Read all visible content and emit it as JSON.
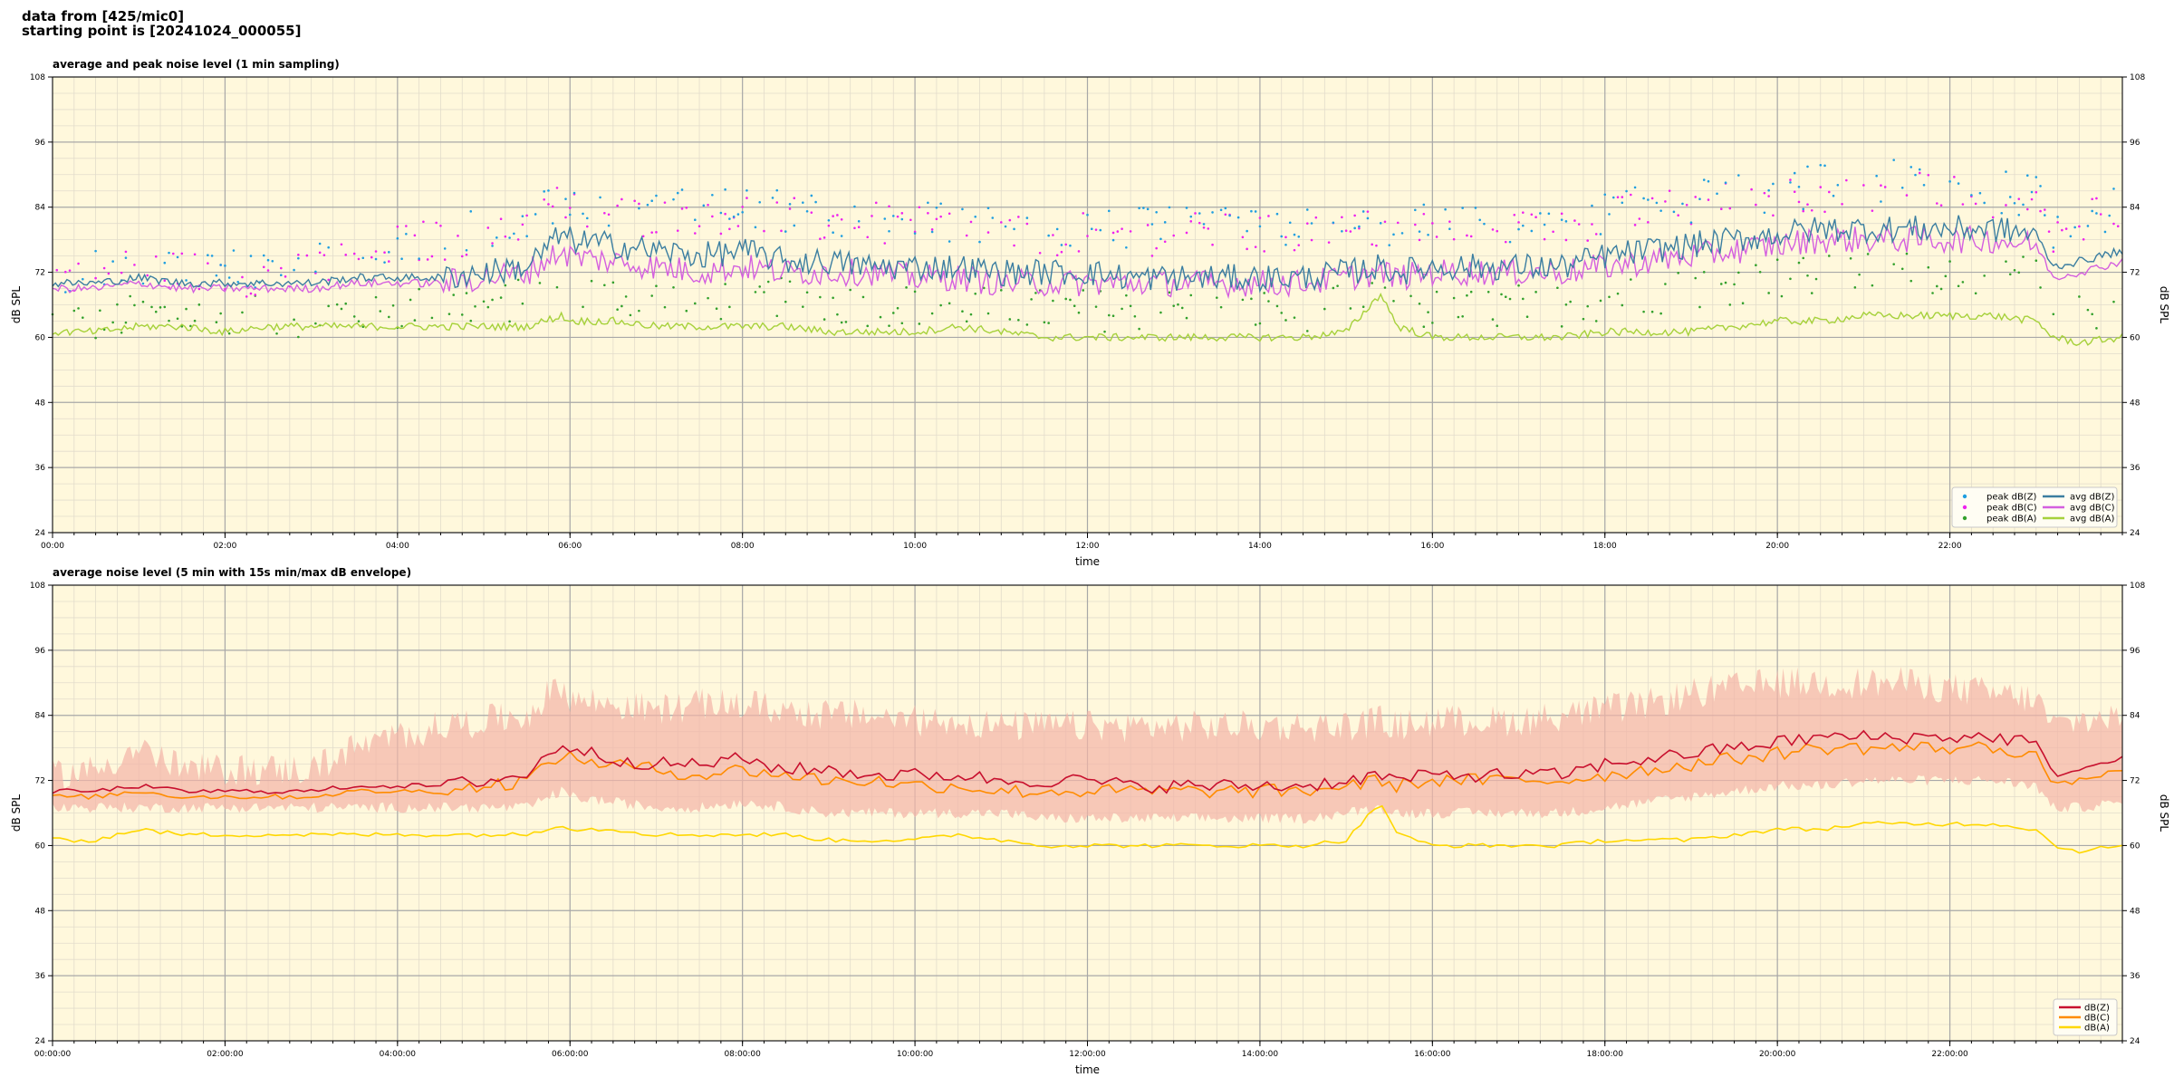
{
  "header": {
    "line1": "data from [425/mic0]",
    "line2": "starting point is [20241024_000055]"
  },
  "chart_data": [
    {
      "type": "line",
      "title": "average and peak noise level (1 min sampling)",
      "xlabel": "time",
      "ylabel": "dB SPL",
      "ylim": [
        24,
        108
      ],
      "xlim_hours": [
        0,
        24
      ],
      "x_tick_labels": [
        "00:00",
        "02:00",
        "04:00",
        "06:00",
        "08:00",
        "10:00",
        "12:00",
        "14:00",
        "16:00",
        "18:00",
        "20:00",
        "22:00"
      ],
      "y_ticks": [
        24,
        36,
        48,
        60,
        72,
        84,
        96,
        108
      ],
      "grid": true,
      "legend_position": "bottom-right",
      "legend_columns": 2,
      "colors": {
        "peakZ": "#1f9ee0",
        "peakC": "#ee22ee",
        "peakA": "#33a02c",
        "avgZ": "#3b7ea1",
        "avgC": "#d45fdf",
        "avgA": "#a6d13b"
      },
      "series": [
        {
          "name": "peak dB(Z)",
          "kind": "scatter",
          "key": "peakZ"
        },
        {
          "name": "peak dB(C)",
          "kind": "scatter",
          "key": "peakC"
        },
        {
          "name": "peak dB(A)",
          "kind": "scatter",
          "key": "peakA"
        },
        {
          "name": "avg dB(Z)",
          "kind": "line",
          "key": "avgZ"
        },
        {
          "name": "avg dB(C)",
          "kind": "line",
          "key": "avgC"
        },
        {
          "name": "avg dB(A)",
          "kind": "line",
          "key": "avgA"
        }
      ],
      "hours": [
        0,
        0.5,
        1,
        1.5,
        2,
        2.5,
        3,
        3.5,
        4,
        4.5,
        5,
        5.5,
        5.9,
        6,
        6.5,
        7,
        7.5,
        8,
        8.5,
        9,
        9.5,
        10,
        10.5,
        11,
        11.5,
        12,
        12.5,
        13,
        13.5,
        14,
        14.5,
        15,
        15.4,
        15.6,
        16,
        16.5,
        17,
        17.5,
        18,
        18.5,
        19,
        19.5,
        20,
        20.5,
        21,
        21.5,
        22,
        22.5,
        23,
        23.2,
        23.5,
        24
      ],
      "values": {
        "avgZ": [
          70,
          70,
          71,
          70,
          70,
          70,
          70,
          71,
          71,
          71,
          72,
          73,
          79,
          78,
          77,
          76,
          75,
          76,
          74,
          74,
          73,
          73,
          73,
          72,
          72,
          72,
          71,
          71,
          71,
          71,
          71,
          72,
          73,
          72,
          73,
          73,
          73,
          73,
          75,
          76,
          77,
          78,
          79,
          80,
          80,
          80,
          80,
          80,
          79,
          73,
          74,
          76
        ],
        "avgC": [
          69,
          69,
          70,
          69,
          69,
          69,
          69,
          70,
          70,
          70,
          71,
          72,
          76,
          75,
          74,
          73,
          72,
          73,
          72,
          72,
          72,
          71,
          71,
          70,
          70,
          70,
          70,
          70,
          70,
          70,
          70,
          71,
          72,
          71,
          72,
          72,
          72,
          72,
          73,
          74,
          75,
          76,
          77,
          78,
          78,
          78,
          78,
          78,
          77,
          71,
          72,
          74
        ],
        "avgA": [
          61,
          61,
          62,
          62,
          61,
          62,
          62,
          62,
          62,
          62,
          62,
          62,
          64,
          63,
          63,
          62,
          62,
          62,
          62,
          61,
          61,
          61,
          62,
          61,
          60,
          60,
          60,
          60,
          60,
          60,
          60,
          61,
          68,
          62,
          60,
          60,
          60,
          60,
          61,
          61,
          61,
          62,
          63,
          63,
          64,
          64,
          64,
          64,
          63,
          60,
          59,
          60
        ],
        "peakZ": [
          72,
          72,
          74,
          73,
          73,
          72,
          73,
          76,
          78,
          79,
          80,
          82,
          86,
          84,
          84,
          83,
          84,
          84,
          83,
          82,
          82,
          81,
          81,
          80,
          80,
          80,
          80,
          80,
          80,
          80,
          80,
          80,
          81,
          80,
          81,
          81,
          81,
          82,
          83,
          84,
          85,
          86,
          87,
          88,
          88,
          89,
          88,
          87,
          86,
          80,
          82,
          84
        ],
        "peakC": [
          71,
          71,
          73,
          72,
          72,
          71,
          72,
          75,
          77,
          78,
          79,
          81,
          85,
          83,
          83,
          82,
          83,
          83,
          82,
          81,
          81,
          80,
          80,
          79,
          79,
          79,
          79,
          79,
          79,
          79,
          79,
          79,
          80,
          79,
          80,
          80,
          80,
          81,
          82,
          83,
          84,
          85,
          86,
          87,
          87,
          88,
          87,
          86,
          85,
          79,
          81,
          83
        ],
        "peakA": [
          63,
          63,
          64,
          64,
          63,
          64,
          64,
          65,
          65,
          66,
          66,
          67,
          69,
          68,
          68,
          67,
          67,
          67,
          67,
          66,
          66,
          66,
          66,
          65,
          65,
          65,
          65,
          65,
          65,
          65,
          65,
          66,
          70,
          66,
          65,
          65,
          66,
          66,
          67,
          68,
          69,
          70,
          71,
          71,
          72,
          72,
          72,
          72,
          71,
          65,
          64,
          66
        ]
      }
    },
    {
      "type": "line",
      "title": "average noise level (5 min with 15s min/max dB envelope)",
      "xlabel": "time",
      "ylabel": "dB SPL",
      "ylim": [
        24,
        108
      ],
      "xlim_hours": [
        0,
        24
      ],
      "x_tick_labels": [
        "00:00:00",
        "02:00:00",
        "04:00:00",
        "06:00:00",
        "08:00:00",
        "10:00:00",
        "12:00:00",
        "14:00:00",
        "16:00:00",
        "18:00:00",
        "20:00:00",
        "22:00:00"
      ],
      "y_ticks": [
        24,
        36,
        48,
        60,
        72,
        84,
        96,
        108
      ],
      "grid": true,
      "legend_position": "bottom-right",
      "colors": {
        "Z": "#c8102e",
        "C": "#ff8c00",
        "A": "#ffd700",
        "envelope": "#f4b3a6"
      },
      "series": [
        {
          "name": "dB(Z)",
          "key": "Z"
        },
        {
          "name": "dB(C)",
          "key": "C"
        },
        {
          "name": "dB(A)",
          "key": "A"
        }
      ],
      "hours": [
        0,
        0.5,
        1,
        1.5,
        2,
        2.5,
        3,
        3.5,
        4,
        4.5,
        5,
        5.5,
        5.9,
        6,
        6.5,
        7,
        7.5,
        8,
        8.5,
        9,
        9.5,
        10,
        10.5,
        11,
        11.5,
        12,
        12.5,
        13,
        13.5,
        14,
        14.5,
        15,
        15.4,
        15.6,
        16,
        16.5,
        17,
        17.5,
        18,
        18.5,
        19,
        19.5,
        20,
        20.5,
        21,
        21.5,
        22,
        22.5,
        23,
        23.2,
        23.5,
        24
      ],
      "values": {
        "Z": [
          70,
          70,
          71,
          70,
          70,
          70,
          70,
          71,
          71,
          71,
          72,
          73,
          79,
          78,
          76,
          75,
          75,
          76,
          74,
          74,
          73,
          73,
          73,
          72,
          72,
          72,
          71,
          71,
          71,
          71,
          71,
          72,
          73,
          72,
          73,
          73,
          73,
          73,
          75,
          76,
          77,
          78,
          79,
          80,
          80,
          80,
          80,
          80,
          79,
          73,
          74,
          76
        ],
        "C": [
          69,
          69,
          70,
          69,
          69,
          69,
          69,
          70,
          70,
          70,
          71,
          72,
          77,
          76,
          75,
          74,
          73,
          74,
          73,
          72,
          72,
          71,
          71,
          70,
          70,
          70,
          70,
          70,
          70,
          70,
          70,
          71,
          72,
          71,
          72,
          72,
          72,
          72,
          73,
          74,
          75,
          76,
          77,
          78,
          78,
          78,
          78,
          78,
          77,
          71,
          72,
          74
        ],
        "A": [
          61,
          61,
          63,
          62,
          62,
          62,
          62,
          62,
          62,
          62,
          62,
          62,
          64,
          63,
          63,
          62,
          62,
          62,
          62,
          61,
          61,
          61,
          62,
          61,
          60,
          60,
          60,
          60,
          60,
          60,
          60,
          61,
          68,
          62,
          60,
          60,
          60,
          60,
          61,
          61,
          61,
          62,
          63,
          63,
          64,
          64,
          64,
          64,
          63,
          60,
          59,
          60
        ],
        "env_min": [
          67,
          67,
          67,
          67,
          67,
          67,
          67,
          67,
          67,
          67,
          67,
          67,
          70,
          69,
          68,
          67,
          67,
          68,
          67,
          66,
          66,
          66,
          66,
          66,
          65,
          65,
          65,
          65,
          65,
          65,
          65,
          66,
          67,
          66,
          66,
          66,
          66,
          66,
          67,
          68,
          69,
          70,
          71,
          71,
          72,
          72,
          72,
          72,
          71,
          67,
          67,
          68
        ],
        "env_max": [
          73,
          74,
          78,
          74,
          74,
          74,
          74,
          78,
          80,
          82,
          83,
          84,
          90,
          87,
          86,
          85,
          86,
          86,
          85,
          84,
          84,
          83,
          83,
          82,
          82,
          82,
          82,
          82,
          82,
          82,
          82,
          82,
          83,
          82,
          83,
          83,
          83,
          84,
          85,
          86,
          88,
          89,
          90,
          90,
          90,
          90,
          89,
          88,
          87,
          82,
          83,
          84
        ]
      }
    }
  ]
}
